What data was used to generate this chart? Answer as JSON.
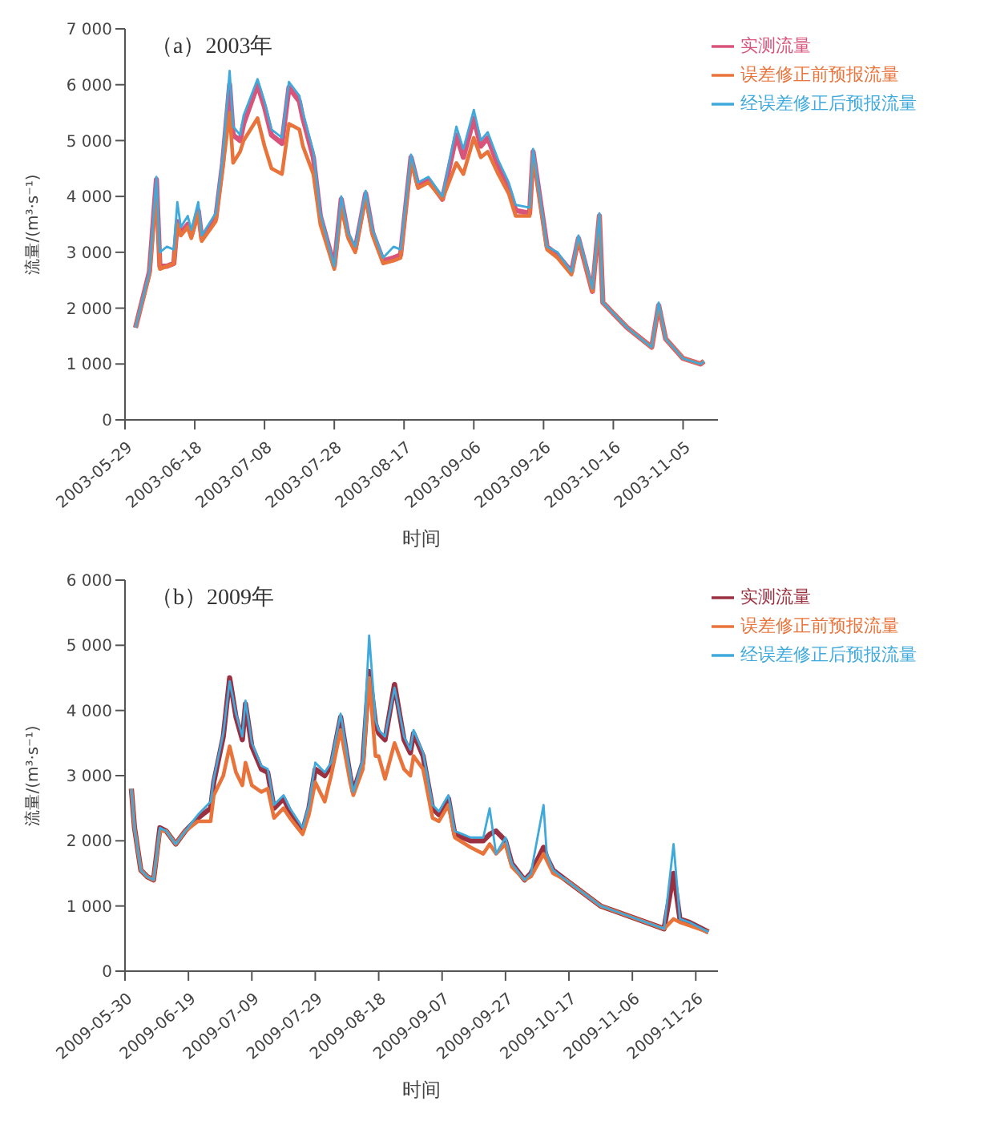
{
  "chart_data": [
    {
      "type": "line",
      "title": "（a）2003年",
      "xlabel": "时间",
      "ylabel": "流量/(m³·s⁻¹)",
      "legend": "top right",
      "marker": "none",
      "x": [
        "2003-06-01",
        "2003-06-05",
        "2003-06-07",
        "2003-06-08",
        "2003-06-10",
        "2003-06-12",
        "2003-06-13",
        "2003-06-14",
        "2003-06-16",
        "2003-06-17",
        "2003-06-19",
        "2003-06-20",
        "2003-06-24",
        "2003-06-26",
        "2003-06-28",
        "2003-06-29",
        "2003-07-01",
        "2003-07-02",
        "2003-07-06",
        "2003-07-08",
        "2003-07-10",
        "2003-07-13",
        "2003-07-15",
        "2003-07-18",
        "2003-07-19",
        "2003-07-22",
        "2003-07-24",
        "2003-07-28",
        "2003-07-30",
        "2003-08-01",
        "2003-08-03",
        "2003-08-06",
        "2003-08-08",
        "2003-08-11",
        "2003-08-14",
        "2003-08-16",
        "2003-08-19",
        "2003-08-21",
        "2003-08-24",
        "2003-08-28",
        "2003-09-01",
        "2003-09-03",
        "2003-09-06",
        "2003-09-08",
        "2003-09-10",
        "2003-09-13",
        "2003-09-16",
        "2003-09-18",
        "2003-09-22",
        "2003-09-23",
        "2003-09-27",
        "2003-09-30",
        "2003-10-04",
        "2003-10-06",
        "2003-10-10",
        "2003-10-12",
        "2003-10-13",
        "2003-10-20",
        "2003-10-27",
        "2003-10-29",
        "2003-10-31",
        "2003-11-05",
        "2003-11-10",
        "2003-11-11"
      ],
      "xlim": [
        "2003-05-29",
        "2003-11-15"
      ],
      "xticks": [
        "2003-05-29",
        "2003-06-18",
        "2003-07-08",
        "2003-07-28",
        "2003-08-17",
        "2003-09-06",
        "2003-09-26",
        "2003-10-16",
        "2003-11-05"
      ],
      "ylim": [
        0,
        7000
      ],
      "yticks": [
        0,
        {
          "value": 1000,
          "label": "1 000"
        },
        {
          "value": 2000,
          "label": "2 000"
        },
        {
          "value": 3000,
          "label": "3 000"
        },
        {
          "value": 4000,
          "label": "4 000"
        },
        {
          "value": 5000,
          "label": "5 000"
        },
        {
          "value": 6000,
          "label": "6 000"
        },
        {
          "value": 7000,
          "label": "7 000"
        }
      ],
      "series": [
        {
          "name": "实测流量",
          "color": "#d9547a",
          "values": [
            1650,
            2650,
            4300,
            2750,
            2750,
            2800,
            3550,
            3350,
            3500,
            3300,
            3750,
            3250,
            3600,
            4600,
            6000,
            5100,
            5000,
            5300,
            6000,
            5600,
            5100,
            4950,
            5950,
            5700,
            5400,
            4700,
            3650,
            2750,
            3950,
            3300,
            3050,
            4050,
            3350,
            2850,
            2900,
            2950,
            4700,
            4200,
            4300,
            3950,
            5100,
            4700,
            5400,
            4900,
            5050,
            4550,
            4150,
            3750,
            3700,
            4800,
            3100,
            2950,
            2650,
            3250,
            2300,
            3650,
            2100,
            1650,
            1300,
            2050,
            1450,
            1100,
            1000,
            1050
          ]
        },
        {
          "name": "误差修正前预报流量",
          "color": "#e8743b",
          "values": [
            1650,
            2600,
            4100,
            2700,
            2750,
            2800,
            3500,
            3300,
            3450,
            3250,
            3700,
            3200,
            3550,
            4500,
            5500,
            4600,
            4800,
            5000,
            5400,
            4900,
            4500,
            4400,
            5300,
            5200,
            4900,
            4400,
            3500,
            2700,
            3800,
            3250,
            3000,
            4000,
            3300,
            2800,
            2850,
            2900,
            4650,
            4150,
            4250,
            3950,
            4600,
            4400,
            5050,
            4700,
            4800,
            4400,
            4050,
            3650,
            3650,
            4750,
            3050,
            2900,
            2600,
            3250,
            2300,
            3650,
            2100,
            1650,
            1300,
            2050,
            1450,
            1100,
            1000,
            1050
          ]
        },
        {
          "name": "经误差修正后预报流量",
          "color": "#3fa9dc",
          "values": [
            1650,
            2650,
            4350,
            3000,
            3100,
            3050,
            3900,
            3450,
            3650,
            3400,
            3900,
            3300,
            3700,
            4700,
            6250,
            5250,
            5100,
            5450,
            6100,
            5700,
            5200,
            5050,
            6050,
            5800,
            5500,
            4800,
            3700,
            2750,
            4000,
            3350,
            3100,
            4100,
            3400,
            2900,
            3100,
            3050,
            4750,
            4250,
            4350,
            4000,
            5250,
            4850,
            5550,
            5000,
            5150,
            4650,
            4250,
            3850,
            3800,
            4850,
            3100,
            3000,
            2650,
            3300,
            2350,
            3700,
            2100,
            1650,
            1300,
            2100,
            1450,
            1100,
            1000,
            1050
          ]
        }
      ]
    },
    {
      "type": "line",
      "title": "（b）2009年",
      "xlabel": "时间",
      "ylabel": "流量/(m³·s⁻¹)",
      "legend": "top right",
      "marker": "none",
      "x": [
        "2009-06-01",
        "2009-06-02",
        "2009-06-04",
        "2009-06-06",
        "2009-06-08",
        "2009-06-10",
        "2009-06-12",
        "2009-06-15",
        "2009-06-18",
        "2009-06-22",
        "2009-06-26",
        "2009-06-27",
        "2009-06-30",
        "2009-07-02",
        "2009-07-04",
        "2009-07-06",
        "2009-07-07",
        "2009-07-09",
        "2009-07-12",
        "2009-07-14",
        "2009-07-16",
        "2009-07-19",
        "2009-07-21",
        "2009-07-25",
        "2009-07-27",
        "2009-07-29",
        "2009-08-01",
        "2009-08-03",
        "2009-08-06",
        "2009-08-09",
        "2009-08-10",
        "2009-08-13",
        "2009-08-15",
        "2009-08-17",
        "2009-08-18",
        "2009-08-20",
        "2009-08-23",
        "2009-08-26",
        "2009-08-28",
        "2009-08-29",
        "2009-09-01",
        "2009-09-04",
        "2009-09-06",
        "2009-09-09",
        "2009-09-11",
        "2009-09-16",
        "2009-09-20",
        "2009-09-22",
        "2009-09-24",
        "2009-09-27",
        "2009-09-29",
        "2009-10-03",
        "2009-10-05",
        "2009-10-09",
        "2009-10-10",
        "2009-10-12",
        "2009-10-16",
        "2009-10-27",
        "2009-11-16",
        "2009-11-19",
        "2009-11-21",
        "2009-11-24",
        "2009-11-30"
      ],
      "xlim": [
        "2009-05-30",
        "2009-12-03"
      ],
      "xticks": [
        "2009-05-30",
        "2009-06-19",
        "2009-07-09",
        "2009-07-29",
        "2009-08-18",
        "2009-09-07",
        "2009-09-27",
        "2009-10-17",
        "2009-11-06",
        "2009-11-26"
      ],
      "ylim": [
        0,
        6000
      ],
      "yticks": [
        0,
        {
          "value": 1000,
          "label": "1 000"
        },
        {
          "value": 2000,
          "label": "2 000"
        },
        {
          "value": 3000,
          "label": "3 000"
        },
        {
          "value": 4000,
          "label": "4 000"
        },
        {
          "value": 5000,
          "label": "5 000"
        },
        {
          "value": 6000,
          "label": "6 000"
        }
      ],
      "series": [
        {
          "name": "实测流量",
          "color": "#9b3040",
          "values": [
            2800,
            2200,
            1550,
            1450,
            1400,
            2200,
            2150,
            1950,
            2150,
            2350,
            2500,
            2900,
            3600,
            4500,
            3900,
            3550,
            4100,
            3450,
            3100,
            3050,
            2500,
            2650,
            2450,
            2150,
            2500,
            3100,
            3000,
            3150,
            3900,
            3000,
            2750,
            3200,
            4600,
            3800,
            3650,
            3550,
            4400,
            3550,
            3350,
            3650,
            3300,
            2500,
            2400,
            2650,
            2100,
            2000,
            2000,
            2100,
            2150,
            2000,
            1650,
            1400,
            1500,
            1900,
            1750,
            1550,
            1400,
            1000,
            650,
            1500,
            800,
            750,
            600
          ]
        },
        {
          "name": "误差修正前预报流量",
          "color": "#e8743b",
          "values": [
            2800,
            2200,
            1550,
            1450,
            1400,
            2150,
            2150,
            1950,
            2150,
            2300,
            2300,
            2700,
            3000,
            3450,
            3050,
            2850,
            3200,
            2850,
            2750,
            2800,
            2350,
            2500,
            2350,
            2100,
            2400,
            2900,
            2600,
            3000,
            3700,
            2900,
            2700,
            3100,
            4500,
            3300,
            3300,
            2950,
            3500,
            3100,
            3000,
            3300,
            3100,
            2350,
            2300,
            2550,
            2050,
            1900,
            1800,
            1950,
            1800,
            1950,
            1600,
            1400,
            1450,
            1800,
            1700,
            1500,
            1400,
            1000,
            650,
            800,
            750,
            700,
            600
          ]
        },
        {
          "name": "经误差修正后预报流量",
          "color": "#3fa9dc",
          "values": [
            2800,
            2200,
            1550,
            1450,
            1400,
            2200,
            2150,
            1950,
            2150,
            2400,
            2600,
            2950,
            3650,
            4450,
            3950,
            3600,
            4150,
            3500,
            3150,
            3100,
            2550,
            2700,
            2500,
            2200,
            2550,
            3200,
            3050,
            3200,
            3950,
            3050,
            2750,
            3250,
            5150,
            3850,
            3700,
            3600,
            4350,
            3600,
            3400,
            3700,
            3350,
            2550,
            2450,
            2700,
            2150,
            2050,
            2050,
            2500,
            1800,
            2050,
            1650,
            1400,
            1500,
            2550,
            1800,
            1550,
            1400,
            1000,
            650,
            1950,
            800,
            750,
            600
          ]
        }
      ]
    }
  ]
}
